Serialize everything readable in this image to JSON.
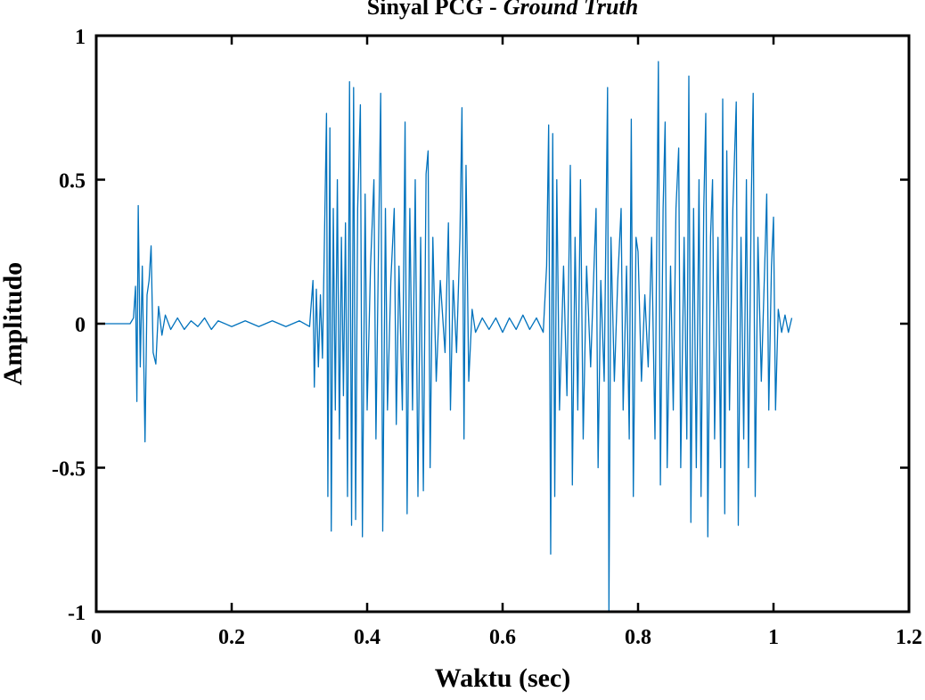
{
  "chart_data": {
    "type": "line",
    "title": "Sinyal PCG -",
    "title_emphasis": "Ground Truth",
    "xlabel": "Waktu (sec)",
    "ylabel": "Amplitudo",
    "xlim": [
      0,
      1.2
    ],
    "ylim": [
      -1,
      1
    ],
    "xticks": [
      0,
      0.2,
      0.4,
      0.6,
      0.8,
      1,
      1.2
    ],
    "yticks": [
      -1,
      -0.5,
      0,
      0.5,
      1
    ],
    "grid": false,
    "x": [
      0,
      0.05,
      0.055,
      0.058,
      0.06,
      0.062,
      0.065,
      0.068,
      0.072,
      0.075,
      0.078,
      0.081,
      0.084,
      0.088,
      0.092,
      0.097,
      0.102,
      0.11,
      0.12,
      0.13,
      0.14,
      0.15,
      0.16,
      0.17,
      0.18,
      0.2,
      0.22,
      0.24,
      0.26,
      0.28,
      0.3,
      0.315,
      0.32,
      0.322,
      0.325,
      0.328,
      0.331,
      0.334,
      0.337,
      0.34,
      0.342,
      0.345,
      0.347,
      0.35,
      0.353,
      0.356,
      0.359,
      0.362,
      0.365,
      0.368,
      0.371,
      0.374,
      0.377,
      0.38,
      0.383,
      0.386,
      0.39,
      0.393,
      0.397,
      0.4,
      0.405,
      0.41,
      0.413,
      0.417,
      0.42,
      0.423,
      0.427,
      0.43,
      0.435,
      0.44,
      0.443,
      0.447,
      0.452,
      0.456,
      0.459,
      0.463,
      0.467,
      0.471,
      0.475,
      0.479,
      0.483,
      0.487,
      0.49,
      0.493,
      0.497,
      0.502,
      0.508,
      0.515,
      0.52,
      0.523,
      0.527,
      0.532,
      0.537,
      0.54,
      0.543,
      0.546,
      0.55,
      0.555,
      0.56,
      0.57,
      0.58,
      0.59,
      0.6,
      0.61,
      0.62,
      0.63,
      0.64,
      0.65,
      0.66,
      0.665,
      0.668,
      0.671,
      0.674,
      0.677,
      0.68,
      0.684,
      0.69,
      0.695,
      0.7,
      0.703,
      0.707,
      0.711,
      0.715,
      0.719,
      0.724,
      0.73,
      0.735,
      0.738,
      0.741,
      0.745,
      0.75,
      0.755,
      0.757,
      0.76,
      0.765,
      0.77,
      0.775,
      0.778,
      0.783,
      0.787,
      0.79,
      0.793,
      0.797,
      0.8,
      0.805,
      0.81,
      0.815,
      0.82,
      0.825,
      0.83,
      0.833,
      0.837,
      0.84,
      0.843,
      0.848,
      0.852,
      0.856,
      0.86,
      0.863,
      0.868,
      0.872,
      0.875,
      0.878,
      0.882,
      0.886,
      0.89,
      0.893,
      0.897,
      0.9,
      0.903,
      0.907,
      0.91,
      0.913,
      0.918,
      0.922,
      0.925,
      0.928,
      0.931,
      0.935,
      0.94,
      0.945,
      0.948,
      0.952,
      0.956,
      0.96,
      0.963,
      0.967,
      0.97,
      0.973,
      0.977,
      0.982,
      0.987,
      0.99,
      0.993,
      0.997,
      1.0,
      1.003,
      1.007,
      1.012,
      1.017,
      1.022,
      1.027
    ],
    "series": [
      {
        "color": "#0072bd",
        "values": [
          0,
          0,
          0.02,
          0.13,
          -0.27,
          0.41,
          -0.15,
          0.2,
          -0.41,
          0.1,
          0.15,
          0.27,
          -0.1,
          -0.14,
          0.06,
          -0.04,
          0.03,
          -0.02,
          0.02,
          -0.02,
          0.01,
          -0.01,
          0.02,
          -0.02,
          0.01,
          -0.01,
          0.01,
          -0.01,
          0.01,
          -0.01,
          0.01,
          -0.01,
          0.15,
          -0.22,
          0.12,
          -0.15,
          0.1,
          -0.12,
          0.3,
          0.73,
          -0.6,
          0.68,
          -0.72,
          0.4,
          -0.3,
          0.5,
          -0.4,
          0.3,
          -0.25,
          0.35,
          -0.6,
          0.84,
          -0.7,
          0.82,
          -0.68,
          0.4,
          0.76,
          -0.74,
          0.45,
          -0.3,
          0.2,
          0.5,
          -0.4,
          0.3,
          0.8,
          -0.72,
          0.4,
          -0.3,
          0.15,
          0.4,
          -0.35,
          0.2,
          -0.3,
          0.7,
          -0.66,
          0.4,
          -0.3,
          0.5,
          -0.6,
          0.3,
          -0.58,
          0.52,
          0.6,
          -0.5,
          0.3,
          -0.2,
          0.15,
          -0.1,
          0.35,
          -0.3,
          0.15,
          -0.1,
          0.3,
          0.75,
          -0.4,
          0.55,
          -0.2,
          0.05,
          -0.03,
          0.02,
          -0.02,
          0.02,
          -0.03,
          0.02,
          -0.02,
          0.03,
          -0.02,
          0.02,
          -0.03,
          0.2,
          0.69,
          -0.8,
          0.66,
          -0.6,
          0.5,
          -0.3,
          0.2,
          -0.25,
          0.55,
          -0.56,
          0.3,
          -0.3,
          0.5,
          -0.4,
          0.2,
          -0.15,
          0.2,
          0.4,
          -0.5,
          0.15,
          -0.2,
          0.82,
          -1.0,
          0.3,
          -0.2,
          0.15,
          0.4,
          -0.3,
          0.2,
          -0.4,
          0.71,
          -0.6,
          0.3,
          0.25,
          -0.2,
          0.1,
          -0.15,
          0.3,
          -0.4,
          0.91,
          -0.56,
          0.4,
          0.7,
          -0.5,
          0.2,
          -0.3,
          0.4,
          0.61,
          -0.5,
          0.3,
          -0.4,
          0.86,
          -0.69,
          0.4,
          -0.5,
          0.5,
          -0.6,
          0.4,
          0.73,
          -0.74,
          0.3,
          0.5,
          -0.4,
          0.3,
          -0.5,
          0.78,
          -0.66,
          0.6,
          -0.3,
          0.4,
          0.77,
          -0.7,
          0.3,
          -0.4,
          0.5,
          -0.5,
          0.4,
          0.8,
          -0.6,
          0.3,
          -0.2,
          0.2,
          0.45,
          -0.3,
          0.2,
          0.37,
          -0.3,
          0.05,
          -0.03,
          0.03,
          -0.03,
          0.02
        ]
      }
    ]
  }
}
